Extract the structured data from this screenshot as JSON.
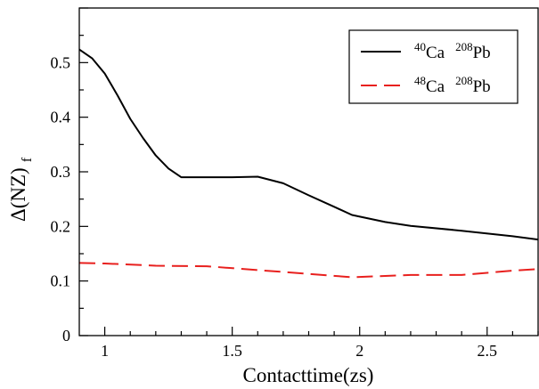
{
  "chart_data": {
    "type": "line",
    "xlabel": "Contacttime(zs)",
    "ylabel_main": "Δ(NZ)",
    "ylabel_sub": "f",
    "xlim": [
      0.9,
      2.7
    ],
    "ylim": [
      0,
      0.6
    ],
    "x_ticks": [
      {
        "value": 1,
        "label": "1"
      },
      {
        "value": 1.5,
        "label": "1.5"
      },
      {
        "value": 2,
        "label": "2"
      },
      {
        "value": 2.5,
        "label": "2.5"
      }
    ],
    "y_ticks": [
      {
        "value": 0,
        "label": "0"
      },
      {
        "value": 0.1,
        "label": "0.1"
      },
      {
        "value": 0.2,
        "label": "0.2"
      },
      {
        "value": 0.3,
        "label": "0.3"
      },
      {
        "value": 0.4,
        "label": "0.4"
      },
      {
        "value": 0.5,
        "label": "0.5"
      }
    ],
    "legend_position": "top-right",
    "series": [
      {
        "name": "40Ca 208Pb",
        "legend_parts": {
          "sup1": "40",
          "elem1": "Ca",
          "sup2": "208",
          "elem2": "Pb"
        },
        "color": "#000000",
        "dash": "solid",
        "x": [
          0.9,
          0.95,
          1.0,
          1.05,
          1.1,
          1.15,
          1.2,
          1.25,
          1.3,
          1.35,
          1.4,
          1.43,
          1.5,
          1.6,
          1.7,
          1.8,
          1.9,
          1.97,
          2.1,
          2.2,
          2.4,
          2.6,
          2.7
        ],
        "y": [
          0.524,
          0.508,
          0.48,
          0.44,
          0.397,
          0.362,
          0.33,
          0.306,
          0.29,
          0.29,
          0.29,
          0.29,
          0.29,
          0.291,
          0.279,
          0.257,
          0.236,
          0.221,
          0.208,
          0.201,
          0.192,
          0.182,
          0.176
        ]
      },
      {
        "name": "48Ca 208Pb",
        "legend_parts": {
          "sup1": "48",
          "elem1": "Ca",
          "sup2": "208",
          "elem2": "Pb"
        },
        "color": "#e8201e",
        "dash": "dashed",
        "x": [
          0.9,
          1.0,
          1.2,
          1.4,
          1.6,
          1.8,
          1.97,
          2.2,
          2.4,
          2.6,
          2.7
        ],
        "y": [
          0.133,
          0.132,
          0.128,
          0.127,
          0.12,
          0.113,
          0.107,
          0.111,
          0.111,
          0.119,
          0.122
        ]
      }
    ]
  }
}
